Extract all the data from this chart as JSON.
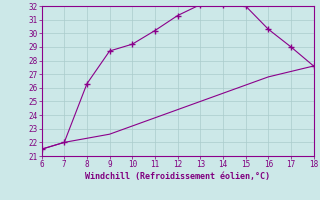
{
  "xlabel": "Windchill (Refroidissement éolien,°C)",
  "line1_x": [
    6,
    7,
    8,
    9,
    10,
    11,
    12,
    13,
    14,
    15,
    16,
    17,
    18
  ],
  "line1_y": [
    21.5,
    22.0,
    26.3,
    28.7,
    29.2,
    30.2,
    31.3,
    32.1,
    32.1,
    32.0,
    30.3,
    29.0,
    27.6
  ],
  "line2_x": [
    6,
    7,
    8,
    9,
    10,
    11,
    12,
    13,
    14,
    15,
    16,
    17,
    18
  ],
  "line2_y": [
    21.5,
    22.0,
    22.3,
    22.6,
    23.2,
    23.8,
    24.4,
    25.0,
    25.6,
    26.2,
    26.8,
    27.2,
    27.6
  ],
  "color": "#8B008B",
  "bg_color": "#cce8e8",
  "grid_color": "#aacccc",
  "xlim": [
    6,
    18
  ],
  "ylim": [
    21,
    32
  ],
  "xticks": [
    6,
    7,
    8,
    9,
    10,
    11,
    12,
    13,
    14,
    15,
    16,
    17,
    18
  ],
  "yticks": [
    21,
    22,
    23,
    24,
    25,
    26,
    27,
    28,
    29,
    30,
    31,
    32
  ],
  "tick_color": "#800080",
  "label_color": "#800080",
  "tick_fontsize": 5.5,
  "xlabel_fontsize": 6.0
}
